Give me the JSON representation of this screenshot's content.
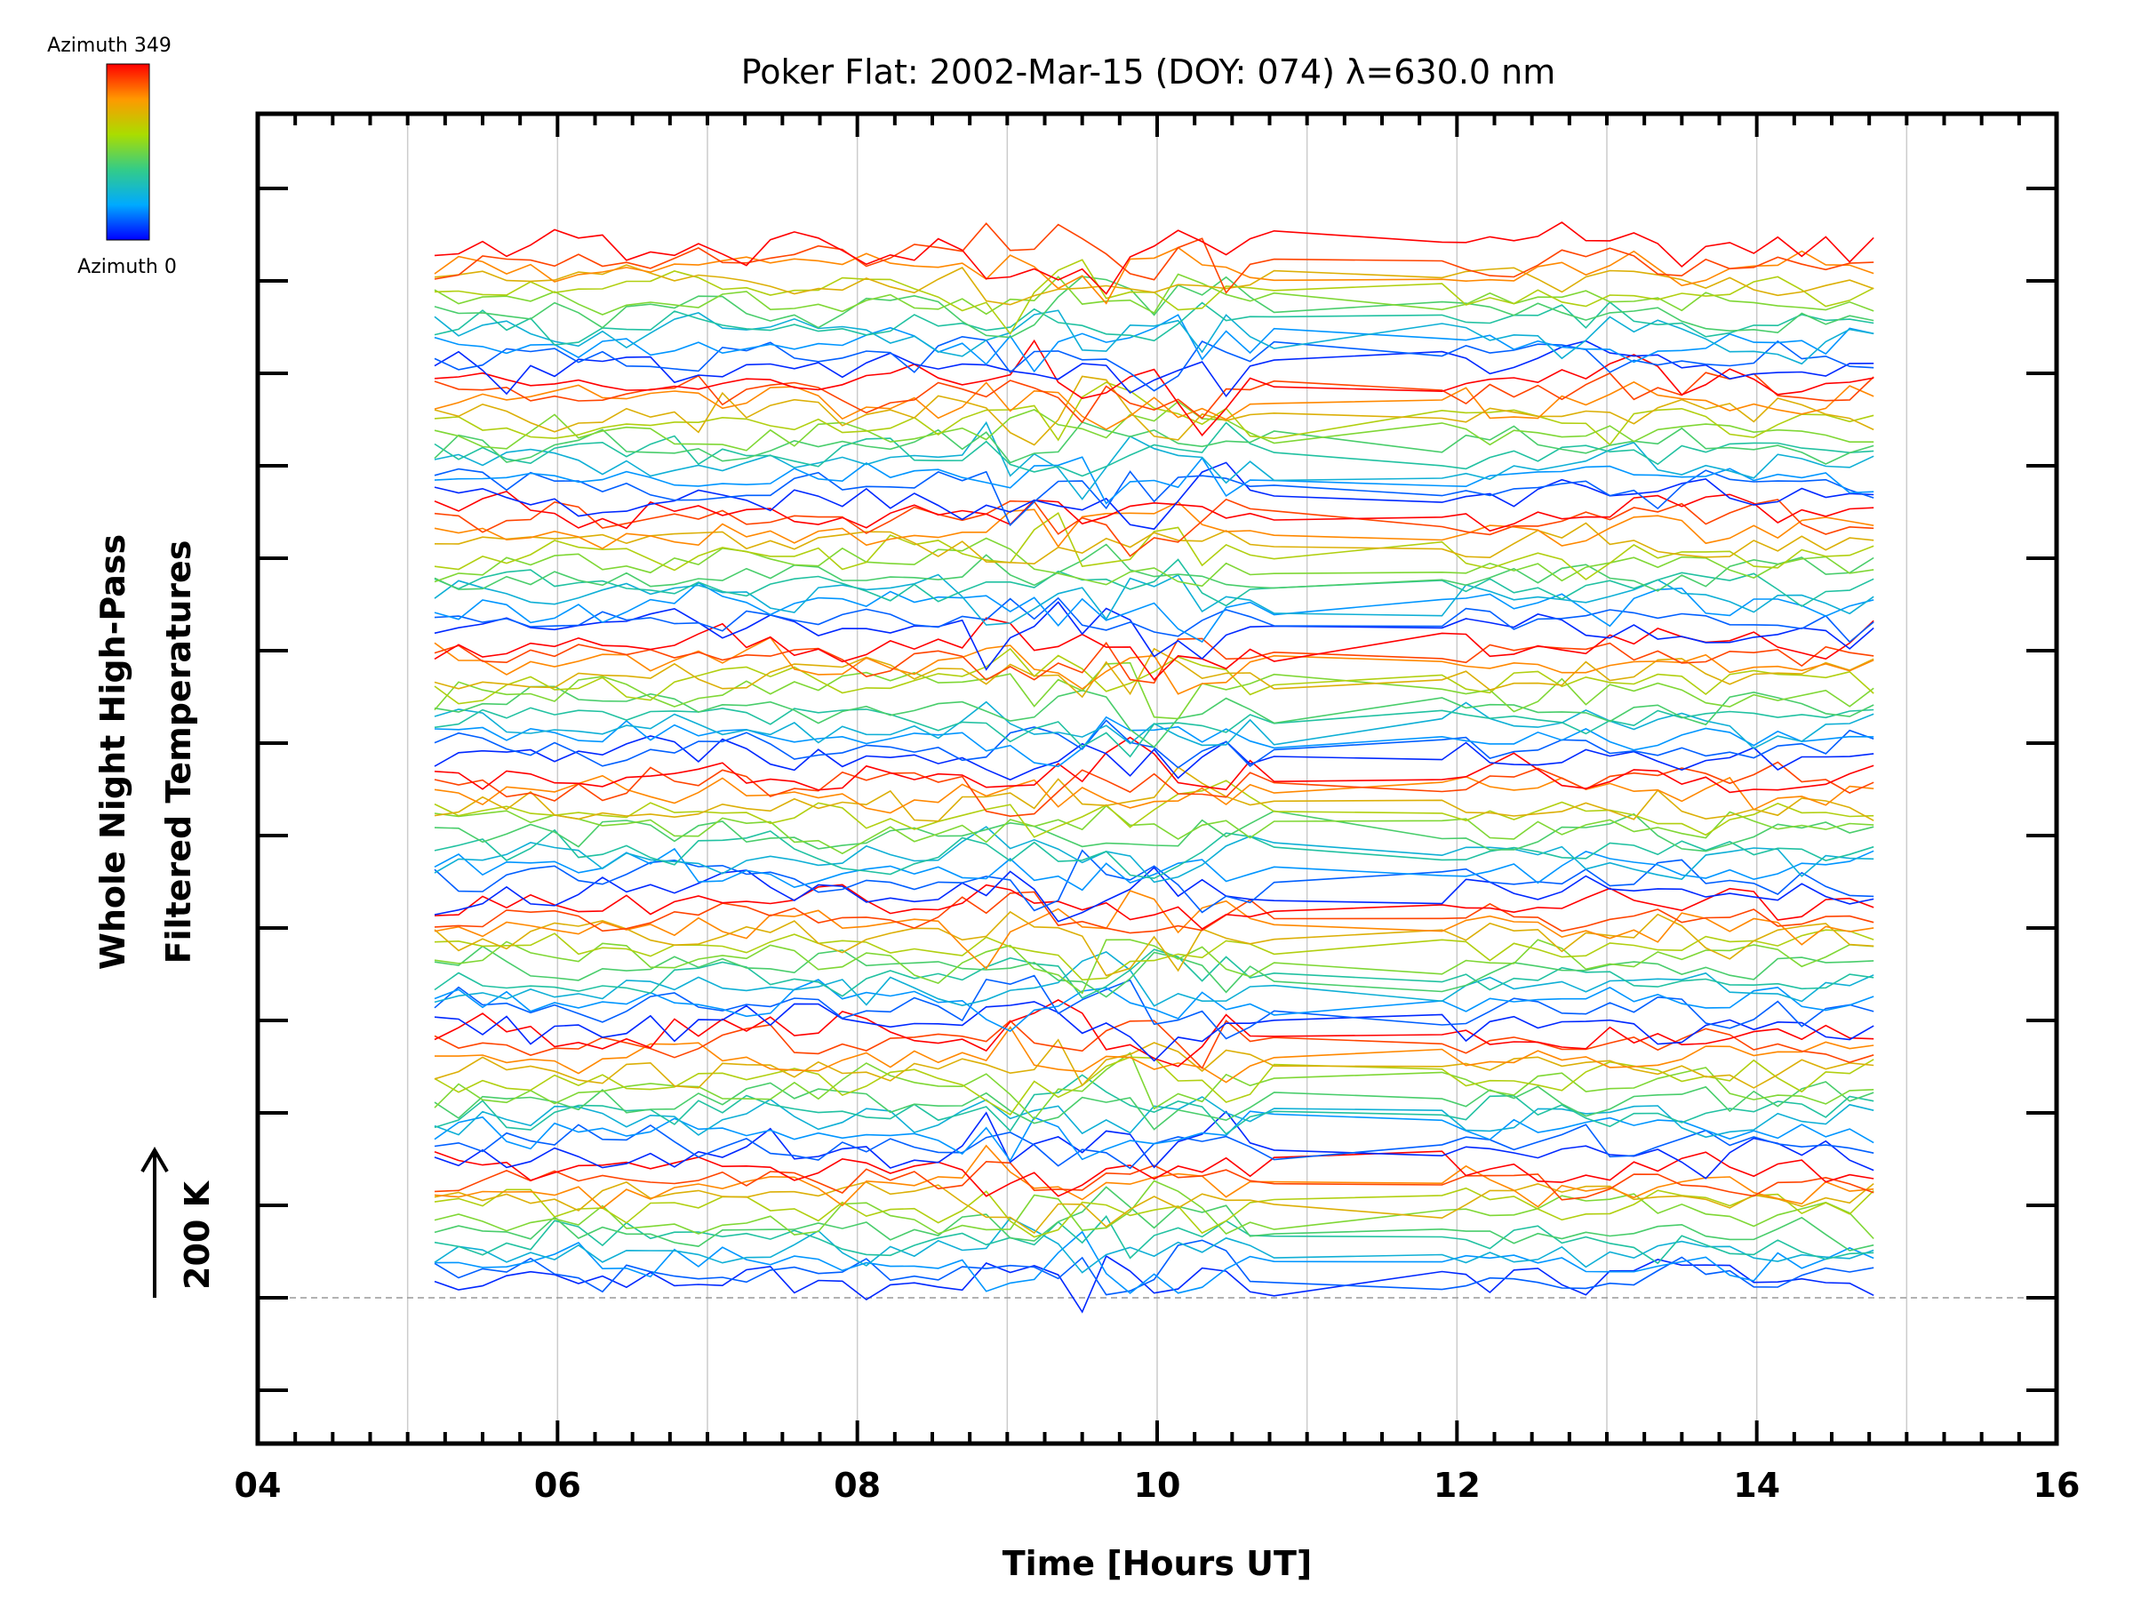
{
  "chart_data": {
    "type": "line",
    "title": "Poker Flat: 2002-Mar-15 (DOY: 074) λ=630.0 nm",
    "xlabel": "Time [Hours UT]",
    "ylabel_line1": "Whole Night High-Pass",
    "ylabel_line2": "Filtered Temperatures",
    "scale_label": "200 K",
    "xlim": [
      4,
      16
    ],
    "x_ticks": [
      "04",
      "06",
      "08",
      "10",
      "12",
      "14",
      "16"
    ],
    "grid": "vertical lines at each hour",
    "colorbar": {
      "top_label": "Azimuth 349",
      "bottom_label": "Azimuth 0",
      "position": "top-left"
    },
    "series_time_range_hours": [
      5.18,
      14.8
    ],
    "series_count": 96,
    "zones": 8,
    "note": "stacked, vertically offset high-pass filtered temperature traces colored by azimuth; y-axis has no numeric labels, scale bar indicates 200 K"
  }
}
